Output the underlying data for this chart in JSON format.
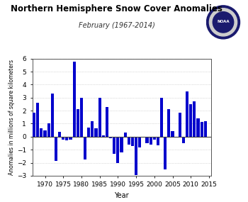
{
  "title": "Northern Hemisphere Snow Cover Anomalies",
  "subtitle": "February (1967-2014)",
  "xlabel": "Year",
  "ylabel": "Anomalies in millions of square kilometers",
  "bar_color": "#0000cc",
  "ylim": [
    -3.0,
    6.0
  ],
  "yticks": [
    -3.0,
    -2.0,
    -1.0,
    0.0,
    1.0,
    2.0,
    3.0,
    4.0,
    5.0,
    6.0
  ],
  "xlim": [
    1966.5,
    2015.5
  ],
  "xticks": [
    1970,
    1975,
    1980,
    1985,
    1990,
    1995,
    2000,
    2005,
    2010,
    2015
  ],
  "years": [
    1967,
    1968,
    1969,
    1970,
    1971,
    1972,
    1973,
    1974,
    1975,
    1976,
    1977,
    1978,
    1979,
    1980,
    1981,
    1982,
    1983,
    1984,
    1985,
    1986,
    1987,
    1988,
    1989,
    1990,
    1991,
    1992,
    1993,
    1994,
    1995,
    1996,
    1997,
    1998,
    1999,
    2000,
    2001,
    2002,
    2003,
    2004,
    2005,
    2006,
    2007,
    2008,
    2009,
    2010,
    2011,
    2012,
    2013,
    2014
  ],
  "values": [
    1.85,
    2.6,
    0.65,
    0.5,
    1.0,
    3.3,
    -1.85,
    0.4,
    -0.25,
    -0.3,
    -0.2,
    5.75,
    2.1,
    3.0,
    -1.75,
    0.7,
    1.2,
    0.65,
    3.0,
    0.1,
    2.3,
    -0.1,
    -1.3,
    -2.0,
    -1.2,
    0.3,
    -0.6,
    -0.7,
    -2.95,
    -0.8,
    -0.05,
    -0.5,
    -0.6,
    -0.2,
    -0.65,
    3.0,
    -2.5,
    2.1,
    0.45,
    -0.05,
    1.85,
    -0.5,
    3.45,
    2.5,
    2.7,
    1.4,
    1.15,
    1.2
  ],
  "zero_line_color": "#444444",
  "background_color": "#ffffff",
  "grid_color": "#bbbbbb"
}
